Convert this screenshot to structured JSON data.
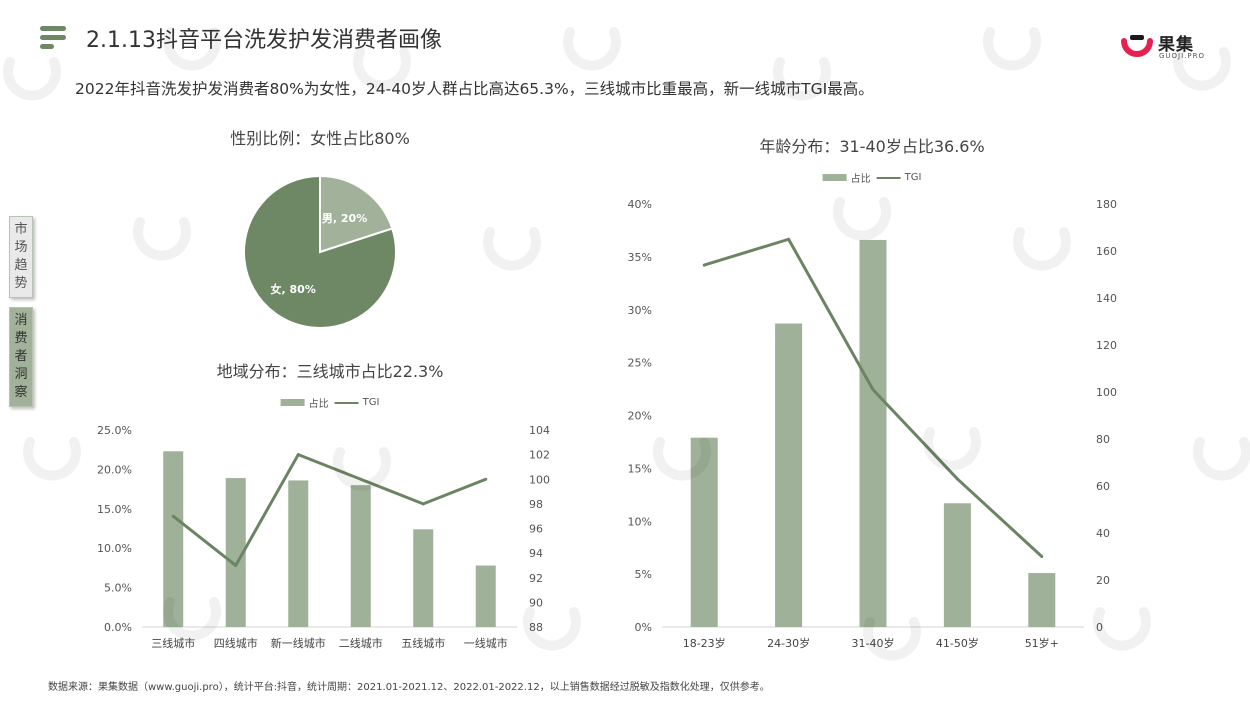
{
  "header": {
    "title": "2.1.13抖音平台洗发护发消费者画像",
    "subtitle": "2022年抖音洗发护发消费者80%为女性，24-40岁人群占比高达65.3%，三线城市比重最高，新一线城市TGI最高。",
    "logo_text": "果集",
    "logo_subtext": "GUOJI.PRO"
  },
  "sidebar": {
    "tabs": [
      {
        "label": "市场趋势",
        "chars": [
          "市",
          "场",
          "趋",
          "势"
        ],
        "active": false
      },
      {
        "label": "消费者洞察",
        "chars": [
          "消",
          "费",
          "者",
          "洞",
          "察"
        ],
        "active": true
      }
    ]
  },
  "colors": {
    "bar": "#9fb199",
    "line": "#6b8563",
    "pie_female": "#6e8765",
    "pie_male": "#a2b199",
    "accent": "#6e8765"
  },
  "footer": {
    "source": "数据来源：果集数据（www.guoji.pro），统计平台:抖音，统计周期：2021.01-2021.12、2022.01-2022.12，以上销售数据经过脱敏及指数化处理，仅供参考。"
  },
  "chart_data": [
    {
      "type": "pie",
      "title": "性别比例：女性占比80%",
      "slices": [
        {
          "name": "男",
          "value": 20,
          "label": "男, 20%"
        },
        {
          "name": "女",
          "value": 80,
          "label": "女, 80%"
        }
      ]
    },
    {
      "type": "bar",
      "title": "地域分布：三线城市占比22.3%",
      "categories": [
        "三线城市",
        "四线城市",
        "新一线城市",
        "二线城市",
        "五线城市",
        "一线城市"
      ],
      "series": [
        {
          "name": "占比",
          "type": "bar",
          "axis": "left",
          "values": [
            22.3,
            18.9,
            18.6,
            18.0,
            12.4,
            7.8
          ]
        },
        {
          "name": "TGI",
          "type": "line",
          "axis": "right",
          "values": [
            97,
            93,
            102,
            100,
            98,
            100
          ]
        }
      ],
      "y_left": {
        "min": 0,
        "max": 25,
        "ticks": [
          0,
          5,
          10,
          15,
          20,
          25
        ],
        "tick_labels": [
          "0.0%",
          "5.0%",
          "10.0%",
          "15.0%",
          "20.0%",
          "25.0%"
        ]
      },
      "y_right": {
        "min": 88,
        "max": 104,
        "ticks": [
          88,
          90,
          92,
          94,
          96,
          98,
          100,
          102,
          104
        ],
        "tick_labels": [
          "88",
          "90",
          "92",
          "94",
          "96",
          "98",
          "100",
          "102",
          "104"
        ]
      },
      "legend": "top",
      "grid": false
    },
    {
      "type": "bar",
      "title": "年龄分布：31-40岁占比36.6%",
      "categories": [
        "18-23岁",
        "24-30岁",
        "31-40岁",
        "41-50岁",
        "51岁+"
      ],
      "series": [
        {
          "name": "占比",
          "type": "bar",
          "axis": "left",
          "values": [
            17.9,
            28.7,
            36.6,
            11.7,
            5.1
          ]
        },
        {
          "name": "TGI",
          "type": "line",
          "axis": "right",
          "values": [
            154,
            165,
            101,
            63,
            30
          ]
        }
      ],
      "y_left": {
        "min": 0,
        "max": 40,
        "ticks": [
          0,
          5,
          10,
          15,
          20,
          25,
          30,
          35,
          40
        ],
        "tick_labels": [
          "0%",
          "5%",
          "10%",
          "15%",
          "20%",
          "25%",
          "30%",
          "35%",
          "40%"
        ]
      },
      "y_right": {
        "min": 0,
        "max": 180,
        "ticks": [
          0,
          20,
          40,
          60,
          80,
          100,
          120,
          140,
          160,
          180
        ],
        "tick_labels": [
          "0",
          "20",
          "40",
          "60",
          "80",
          "100",
          "120",
          "140",
          "160",
          "180"
        ]
      },
      "legend": "top",
      "grid": false
    }
  ]
}
